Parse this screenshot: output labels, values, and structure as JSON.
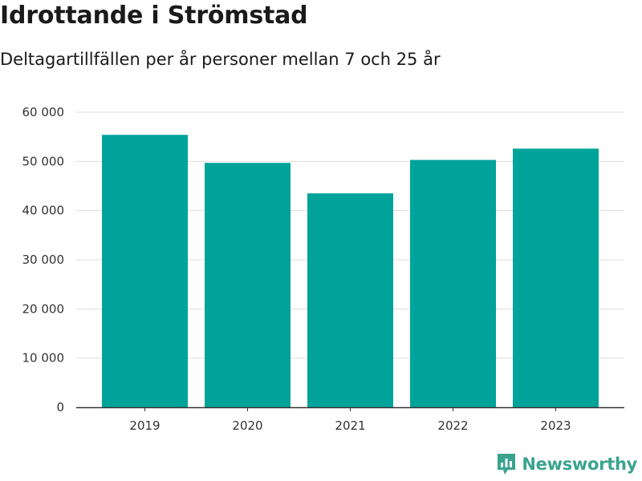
{
  "title": "Idrottande i Strömstad",
  "subtitle": "Deltagartillfällen per år personer mellan 7 och 25 år",
  "brand": {
    "name": "Newsworthy",
    "icon": "chart-logo-icon",
    "color": "#3aa38f"
  },
  "colors": {
    "bar": "#00a39a",
    "grid": "#dddddd",
    "axis": "#333333"
  },
  "chart_data": {
    "type": "bar",
    "categories": [
      "2019",
      "2020",
      "2021",
      "2022",
      "2023"
    ],
    "values": [
      55400,
      49700,
      43500,
      50300,
      52600
    ],
    "ylim": [
      0,
      60000
    ],
    "yticks": [
      0,
      10000,
      20000,
      30000,
      40000,
      50000,
      60000
    ],
    "ytick_labels": [
      "0",
      "10 000",
      "20 000",
      "30 000",
      "40 000",
      "50 000",
      "60 000"
    ],
    "grid": true,
    "legend": "none"
  }
}
